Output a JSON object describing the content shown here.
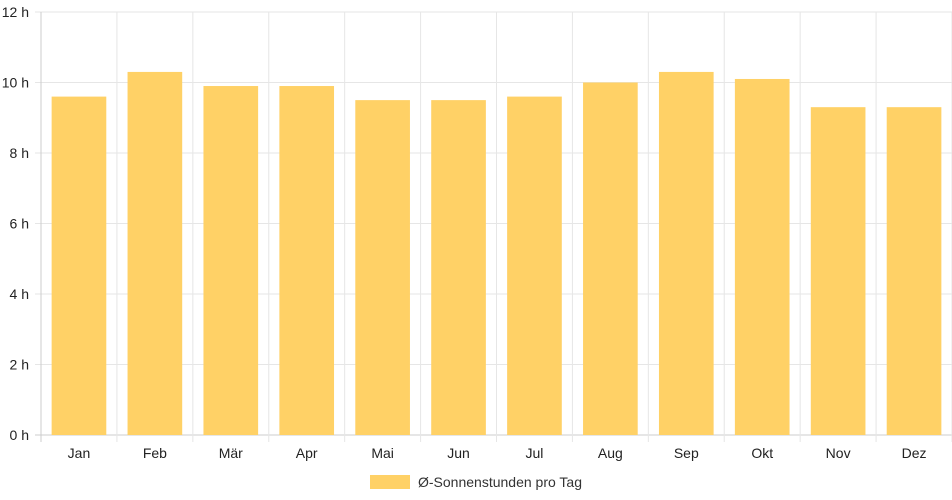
{
  "chart_data": {
    "type": "bar",
    "categories": [
      "Jan",
      "Feb",
      "Mär",
      "Apr",
      "Mai",
      "Jun",
      "Jul",
      "Aug",
      "Sep",
      "Okt",
      "Nov",
      "Dez"
    ],
    "series": [
      {
        "name": "Ø-Sonnenstunden pro Tag",
        "values": [
          9.6,
          10.3,
          9.9,
          9.9,
          9.5,
          9.5,
          9.6,
          10.0,
          10.3,
          10.1,
          9.3,
          9.3
        ]
      }
    ],
    "y_ticks": [
      "0 h",
      "2 h",
      "4 h",
      "6 h",
      "8 h",
      "10 h",
      "12 h"
    ],
    "ylim": [
      0,
      12
    ],
    "grid": true,
    "legend_position": "bottom",
    "colors": {
      "bar": "#ffd166",
      "grid": "#e6e6e6",
      "axis": "#cccccc"
    }
  }
}
